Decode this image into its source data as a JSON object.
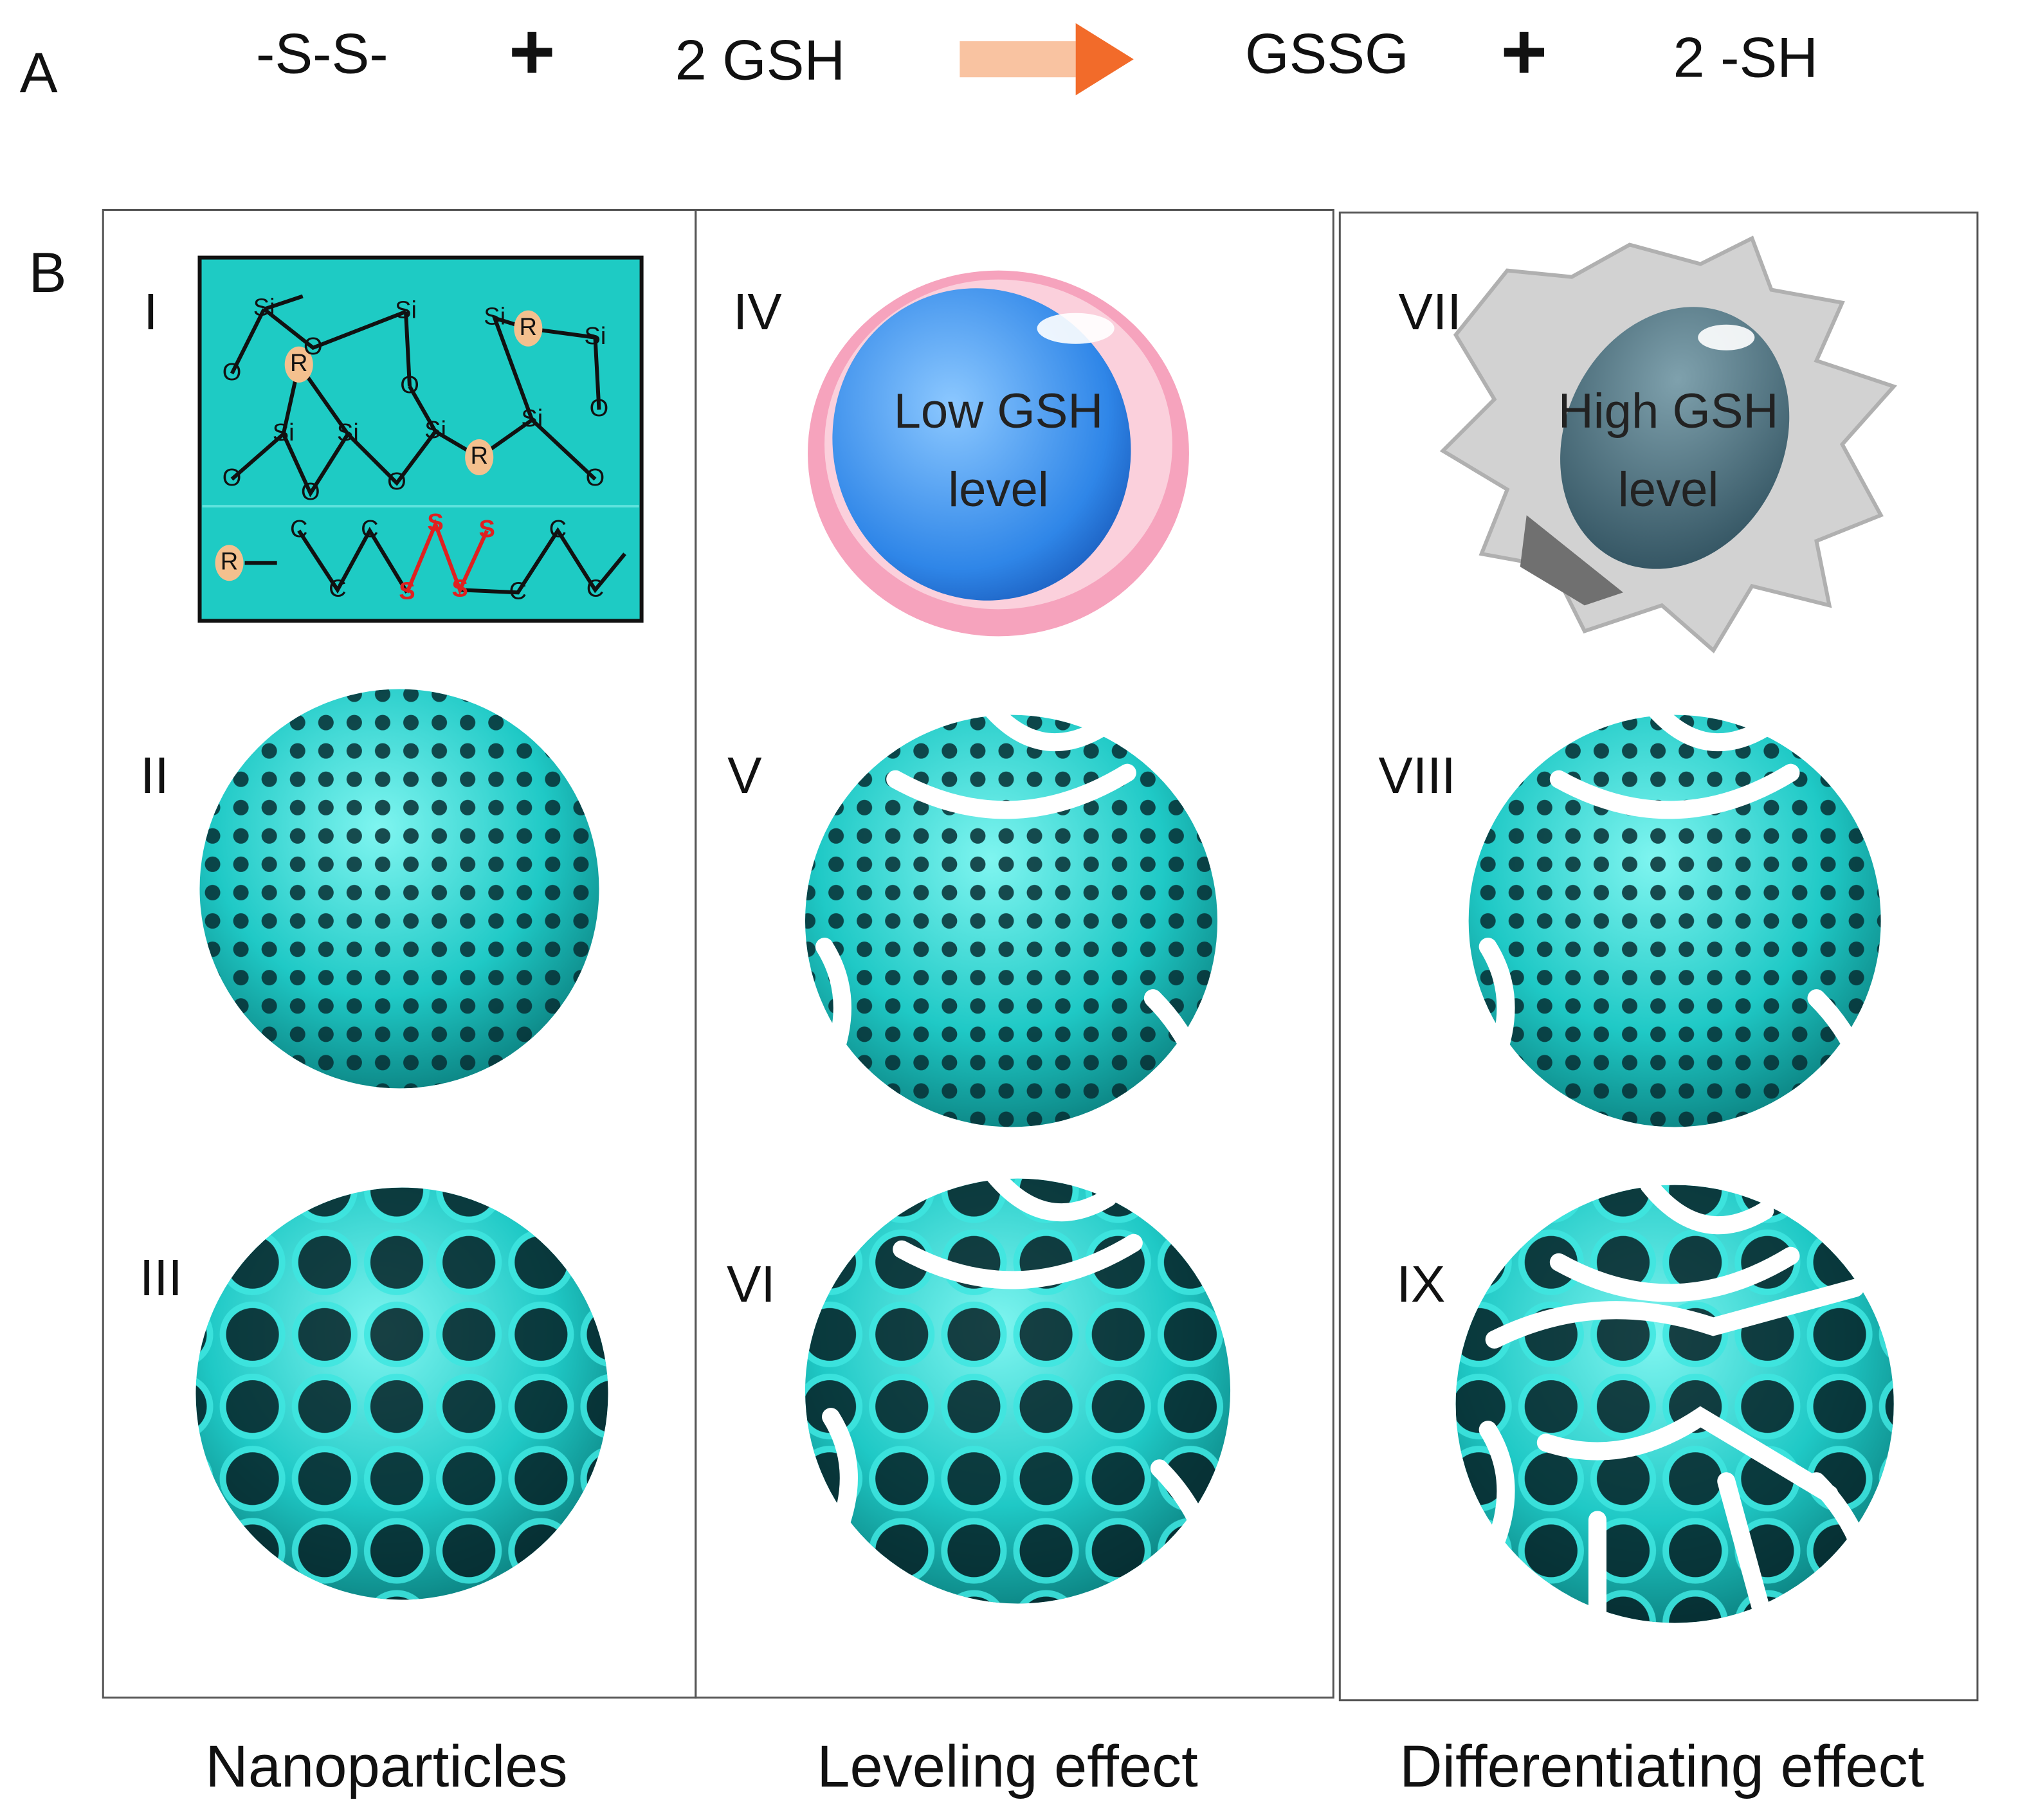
{
  "reaction": {
    "panel_label": "A",
    "reactant_1": "-S-S-",
    "plus_1": "+",
    "reactant_2": "2 GSH",
    "product_1": "GSSG",
    "plus_2": "+",
    "product_2": "2 -SH"
  },
  "panel_b": {
    "label": "B",
    "captions": [
      "Nanoparticles",
      "Leveling effect",
      "Differentiating effect"
    ],
    "panels": [
      "I",
      "II",
      "III",
      "IV",
      "V",
      "VI",
      "VII",
      "VIII",
      "IX"
    ],
    "low_cell": [
      "Low GSH",
      "level"
    ],
    "high_cell": [
      "High GSH",
      "level"
    ],
    "structure_labels": [
      "Si",
      "Si",
      "Si",
      "R",
      "Si",
      "O",
      "R",
      "O",
      "O",
      "O",
      "Si",
      "Si",
      "Si",
      "Si",
      "R",
      "O",
      "O",
      "O",
      "O",
      "R",
      "C",
      "C",
      "C",
      "S",
      "S",
      "S",
      "S",
      "C",
      "C",
      "C"
    ]
  }
}
